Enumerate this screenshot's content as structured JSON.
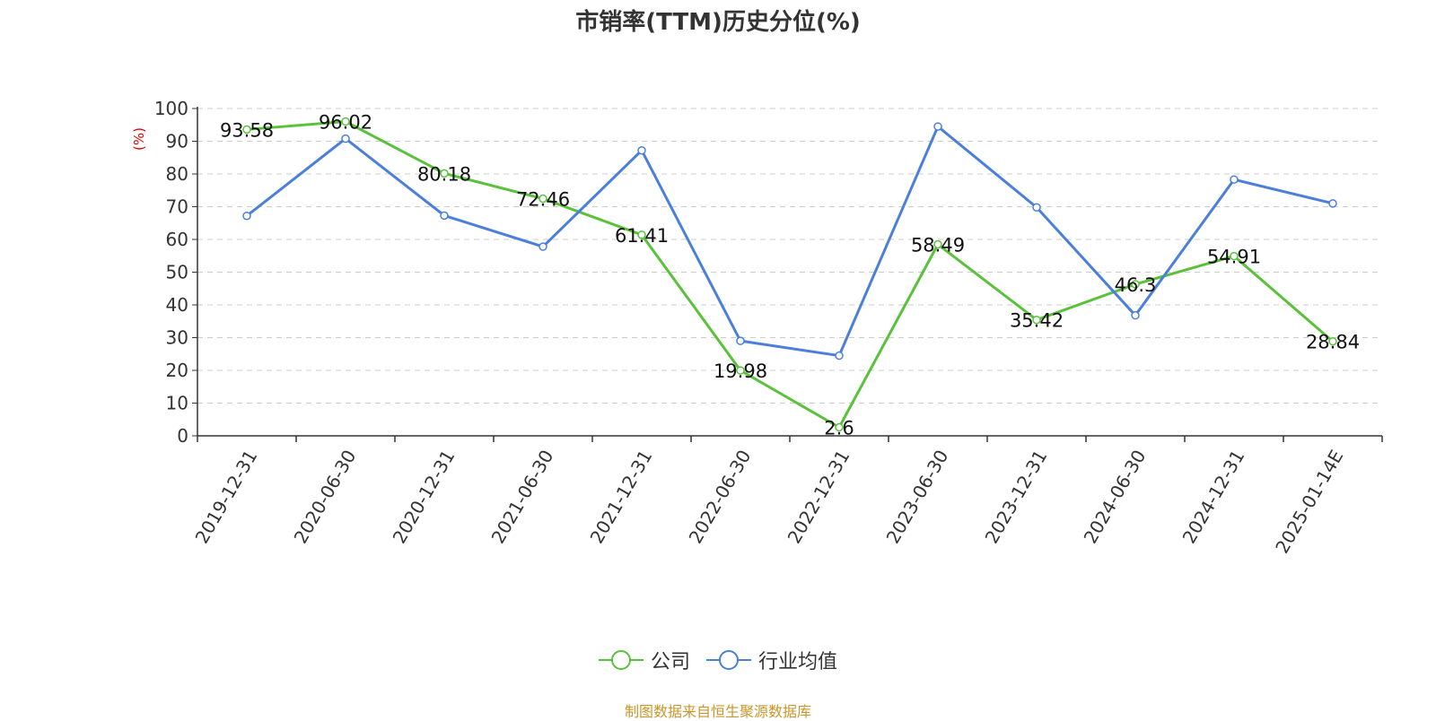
{
  "chart_data": {
    "type": "line",
    "title": "市销率(TTM)历史分位(%)",
    "ylabel": "(%)",
    "xlabel": "",
    "ylim": [
      0,
      100
    ],
    "yticks": [
      0,
      10,
      20,
      30,
      40,
      50,
      60,
      70,
      80,
      90,
      100
    ],
    "grid": true,
    "legend_position": "bottom",
    "categories": [
      "2019-12-31",
      "2020-06-30",
      "2020-12-31",
      "2021-06-30",
      "2021-12-31",
      "2022-06-30",
      "2022-12-31",
      "2023-06-30",
      "2023-12-31",
      "2024-06-30",
      "2024-12-31",
      "2025-01-14E"
    ],
    "series": [
      {
        "name": "公司",
        "color": "#5ac13a",
        "values": [
          93.58,
          96.02,
          80.18,
          72.46,
          61.41,
          19.98,
          2.6,
          58.49,
          35.42,
          46.3,
          54.91,
          28.84
        ],
        "labels": [
          "93.58",
          "96.02",
          "80.18",
          "72.46",
          "61.41",
          "19.98",
          "2.6",
          "58.49",
          "35.42",
          "46.3",
          "54.91",
          "28.84"
        ]
      },
      {
        "name": "行业均值",
        "color": "#4b7fdc",
        "values": [
          67.2,
          90.8,
          67.3,
          57.8,
          87.2,
          29.0,
          24.5,
          94.5,
          69.8,
          36.8,
          78.3,
          71.0
        ]
      }
    ]
  },
  "source": "制图数据来自恒生聚源数据库"
}
